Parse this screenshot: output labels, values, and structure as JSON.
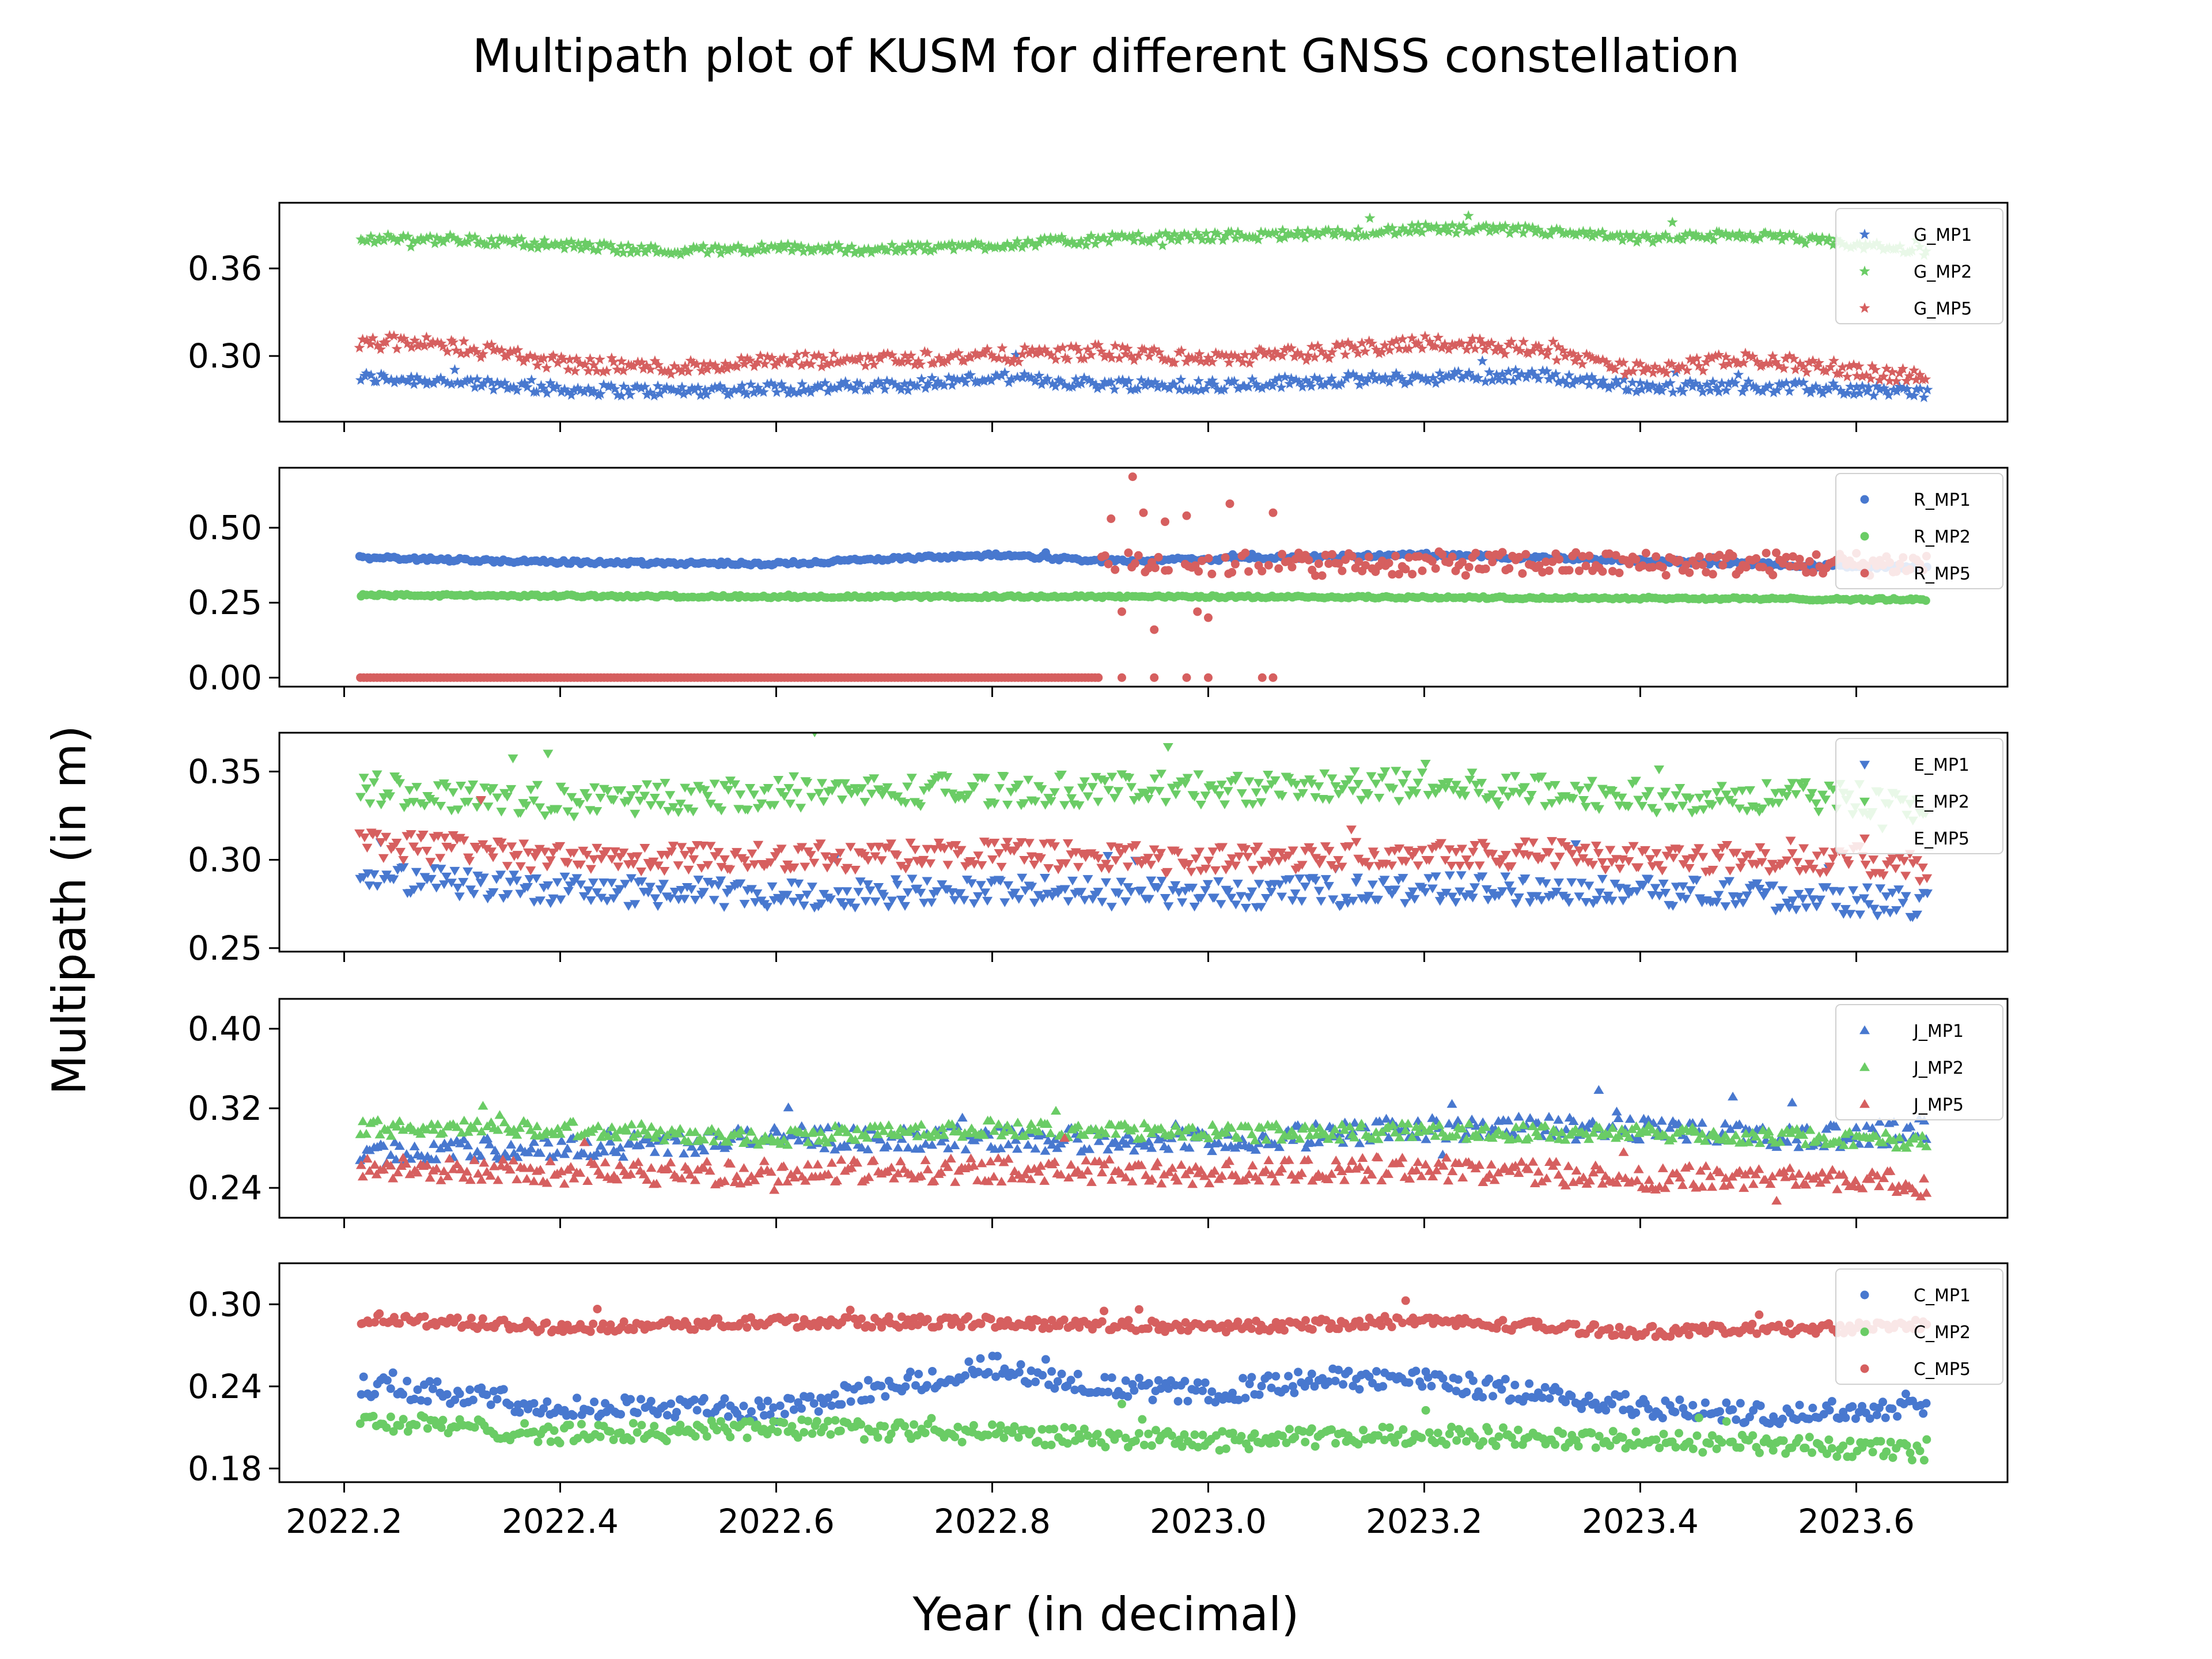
{
  "chart_data": {
    "type": "scatter",
    "title": "Multipath plot of KUSM for different GNSS constellation",
    "xlabel": "Year (in decimal)",
    "ylabel": "Multipath (in m)",
    "xlim": [
      2022.14,
      2023.74
    ],
    "x_ticks": [
      2022.2,
      2022.4,
      2022.6,
      2022.8,
      2023.0,
      2023.2,
      2023.4,
      2023.6
    ],
    "x_tick_labels": [
      "2022.2",
      "2022.4",
      "2022.6",
      "2022.8",
      "2023.0",
      "2023.2",
      "2023.4",
      "2023.6"
    ],
    "x_range": [
      2022.215,
      2023.665
    ],
    "legend_position": "right",
    "grid": false,
    "panels": [
      {
        "id": "G",
        "ylim": [
          0.255,
          0.405
        ],
        "y_ticks": [
          0.3,
          0.36
        ],
        "y_tick_labels": [
          "0.30",
          "0.36"
        ],
        "marker": "star",
        "series": [
          {
            "name": "G_MP1",
            "color": "#4878cf",
            "x": [
              2022.22,
              2022.3,
              2022.4,
              2022.5,
              2022.6,
              2022.7,
              2022.8,
              2022.9,
              2023.0,
              2023.1,
              2023.2,
              2023.3,
              2023.4,
              2023.5,
              2023.6,
              2023.66
            ],
            "y": [
              0.285,
              0.283,
              0.277,
              0.276,
              0.278,
              0.279,
              0.285,
              0.281,
              0.28,
              0.283,
              0.285,
              0.287,
              0.279,
              0.279,
              0.277,
              0.275
            ],
            "noise": 0.004
          },
          {
            "name": "G_MP2",
            "color": "#6acc65",
            "x": [
              2022.22,
              2022.3,
              2022.4,
              2022.5,
              2022.6,
              2022.7,
              2022.8,
              2022.9,
              2023.0,
              2023.1,
              2023.2,
              2023.3,
              2023.4,
              2023.5,
              2023.6,
              2023.66
            ],
            "y": [
              0.38,
              0.38,
              0.376,
              0.372,
              0.374,
              0.373,
              0.376,
              0.38,
              0.382,
              0.383,
              0.387,
              0.386,
              0.38,
              0.383,
              0.376,
              0.372
            ],
            "noise": 0.003
          },
          {
            "name": "G_MP5",
            "color": "#d65f5f",
            "x": [
              2022.22,
              2022.3,
              2022.4,
              2022.5,
              2022.6,
              2022.7,
              2022.8,
              2022.9,
              2023.0,
              2023.1,
              2023.2,
              2023.3,
              2023.4,
              2023.5,
              2023.6,
              2023.66
            ],
            "y": [
              0.31,
              0.307,
              0.295,
              0.292,
              0.296,
              0.298,
              0.3,
              0.303,
              0.298,
              0.302,
              0.31,
              0.305,
              0.29,
              0.298,
              0.29,
              0.285
            ],
            "noise": 0.005
          }
        ]
      },
      {
        "id": "R",
        "ylim": [
          -0.03,
          0.7
        ],
        "y_ticks": [
          0.0,
          0.25,
          0.5
        ],
        "y_tick_labels": [
          "0.00",
          "0.25",
          "0.50"
        ],
        "marker": "circle",
        "series": [
          {
            "name": "R_MP1",
            "color": "#4878cf",
            "x": [
              2022.22,
              2022.4,
              2022.6,
              2022.8,
              2022.9,
              2023.0,
              2023.2,
              2023.4,
              2023.6,
              2023.66
            ],
            "y": [
              0.4,
              0.385,
              0.38,
              0.41,
              0.39,
              0.395,
              0.41,
              0.39,
              0.37,
              0.37
            ],
            "noise": 0.006
          },
          {
            "name": "R_MP2",
            "color": "#6acc65",
            "x": [
              2022.22,
              2022.6,
              2023.0,
              2023.4,
              2023.66
            ],
            "y": [
              0.275,
              0.27,
              0.27,
              0.265,
              0.26
            ],
            "noise": 0.004
          },
          {
            "name": "R_MP5",
            "color": "#d65f5f",
            "x": [
              2022.22,
              2022.9,
              2022.905,
              2023.2,
              2023.66
            ],
            "y": [
              0.0,
              0.0,
              0.33,
              0.39,
              0.38
            ],
            "noise": 0.0,
            "note_points": [
              [
                2022.93,
                0.67
              ],
              [
                2022.91,
                0.53
              ],
              [
                2022.94,
                0.55
              ],
              [
                2022.96,
                0.52
              ],
              [
                2022.98,
                0.54
              ],
              [
                2023.02,
                0.58
              ],
              [
                2023.06,
                0.55
              ],
              [
                2022.92,
                0.22
              ],
              [
                2022.95,
                0.16
              ],
              [
                2022.99,
                0.22
              ],
              [
                2023.0,
                0.2
              ],
              [
                2022.92,
                0.0
              ],
              [
                2022.95,
                0.0
              ],
              [
                2022.98,
                0.0
              ],
              [
                2023.0,
                0.0
              ],
              [
                2023.05,
                0.0
              ],
              [
                2023.06,
                0.0
              ]
            ]
          }
        ]
      },
      {
        "id": "E",
        "ylim": [
          0.248,
          0.372
        ],
        "y_ticks": [
          0.25,
          0.3,
          0.35
        ],
        "y_tick_labels": [
          "0.25",
          "0.30",
          "0.35"
        ],
        "marker": "triangle_down",
        "series": [
          {
            "name": "E_MP1",
            "color": "#4878cf",
            "x": [
              2022.22,
              2022.4,
              2022.6,
              2022.8,
              2023.0,
              2023.2,
              2023.4,
              2023.6,
              2023.66
            ],
            "y": [
              0.29,
              0.283,
              0.28,
              0.283,
              0.28,
              0.284,
              0.283,
              0.277,
              0.275
            ],
            "noise": 0.008
          },
          {
            "name": "E_MP2",
            "color": "#6acc65",
            "x": [
              2022.22,
              2022.4,
              2022.6,
              2022.8,
              2023.0,
              2023.2,
              2023.4,
              2023.6,
              2023.66
            ],
            "y": [
              0.34,
              0.333,
              0.338,
              0.34,
              0.34,
              0.342,
              0.336,
              0.335,
              0.33
            ],
            "noise": 0.009
          },
          {
            "name": "E_MP5",
            "color": "#d65f5f",
            "x": [
              2022.22,
              2022.4,
              2022.6,
              2022.8,
              2023.0,
              2023.2,
              2023.4,
              2023.6,
              2023.66
            ],
            "y": [
              0.31,
              0.3,
              0.302,
              0.303,
              0.3,
              0.305,
              0.302,
              0.3,
              0.295
            ],
            "noise": 0.008
          }
        ]
      },
      {
        "id": "J",
        "ylim": [
          0.21,
          0.43
        ],
        "y_ticks": [
          0.24,
          0.32,
          0.4
        ],
        "y_tick_labels": [
          "0.24",
          "0.32",
          "0.40"
        ],
        "marker": "triangle_up",
        "series": [
          {
            "name": "J_MP1",
            "color": "#4878cf",
            "x": [
              2022.22,
              2022.4,
              2022.6,
              2022.8,
              2023.0,
              2023.2,
              2023.4,
              2023.6,
              2023.66
            ],
            "y": [
              0.275,
              0.28,
              0.29,
              0.29,
              0.285,
              0.3,
              0.3,
              0.29,
              0.3
            ],
            "noise": 0.012
          },
          {
            "name": "J_MP2",
            "color": "#6acc65",
            "x": [
              2022.22,
              2022.4,
              2022.6,
              2022.8,
              2023.0,
              2023.2,
              2023.4,
              2023.6,
              2023.66
            ],
            "y": [
              0.3,
              0.3,
              0.29,
              0.3,
              0.295,
              0.297,
              0.295,
              0.29,
              0.285
            ],
            "noise": 0.008
          },
          {
            "name": "J_MP5",
            "color": "#d65f5f",
            "x": [
              2022.22,
              2022.4,
              2022.6,
              2022.8,
              2023.0,
              2023.2,
              2023.4,
              2023.6,
              2023.66
            ],
            "y": [
              0.26,
              0.255,
              0.255,
              0.258,
              0.255,
              0.26,
              0.25,
              0.25,
              0.24
            ],
            "noise": 0.012
          }
        ]
      },
      {
        "id": "C",
        "ylim": [
          0.17,
          0.33
        ],
        "y_ticks": [
          0.18,
          0.24,
          0.3
        ],
        "y_tick_labels": [
          "0.18",
          "0.24",
          "0.30"
        ],
        "marker": "circle",
        "series": [
          {
            "name": "C_MP1",
            "color": "#4878cf",
            "x": [
              2022.22,
              2022.3,
              2022.4,
              2022.5,
              2022.6,
              2022.7,
              2022.8,
              2022.9,
              2023.0,
              2023.1,
              2023.2,
              2023.3,
              2023.4,
              2023.5,
              2023.6,
              2023.66
            ],
            "y": [
              0.24,
              0.235,
              0.225,
              0.225,
              0.222,
              0.24,
              0.255,
              0.24,
              0.235,
              0.245,
              0.245,
              0.235,
              0.225,
              0.22,
              0.222,
              0.228
            ],
            "noise": 0.008
          },
          {
            "name": "C_MP2",
            "color": "#6acc65",
            "x": [
              2022.22,
              2022.4,
              2022.6,
              2022.8,
              2023.0,
              2023.2,
              2023.4,
              2023.6,
              2023.66
            ],
            "y": [
              0.215,
              0.205,
              0.21,
              0.205,
              0.2,
              0.205,
              0.2,
              0.195,
              0.19
            ],
            "noise": 0.007
          },
          {
            "name": "C_MP5",
            "color": "#d65f5f",
            "x": [
              2022.22,
              2022.4,
              2022.6,
              2022.8,
              2023.0,
              2023.2,
              2023.4,
              2023.6,
              2023.66
            ],
            "y": [
              0.29,
              0.283,
              0.287,
              0.287,
              0.283,
              0.288,
              0.28,
              0.283,
              0.285
            ],
            "noise": 0.004
          }
        ]
      }
    ]
  }
}
